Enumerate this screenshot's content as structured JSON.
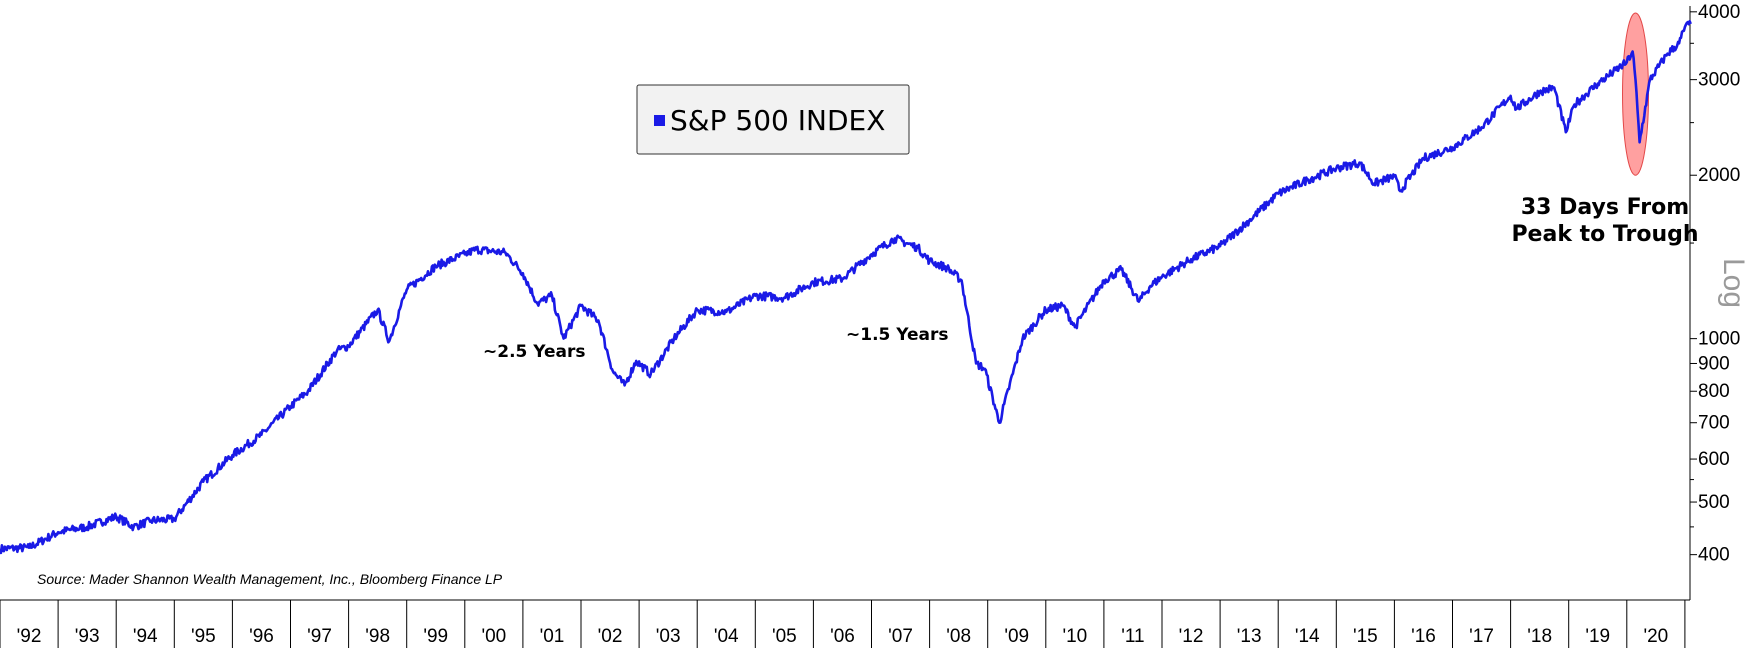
{
  "chart_data": {
    "type": "line",
    "title": "S&P 500 INDEX",
    "y_scale_label": "Log",
    "ylim": [
      330,
      4100
    ],
    "y_ticks": [
      400,
      500,
      600,
      700,
      800,
      900,
      1000,
      2000,
      3000,
      4000
    ],
    "y_tick_labels": [
      "400",
      "500",
      "600",
      "700",
      "800",
      "900",
      "1000",
      "2000",
      "3000",
      "4000"
    ],
    "x_ticks": [
      1992,
      1993,
      1994,
      1995,
      1996,
      1997,
      1998,
      1999,
      2000,
      2001,
      2002,
      2003,
      2004,
      2005,
      2006,
      2007,
      2008,
      2009,
      2010,
      2011,
      2012,
      2013,
      2014,
      2015,
      2016,
      2017,
      2018,
      2019,
      2020
    ],
    "x_tick_labels": [
      "'92",
      "'93",
      "'94",
      "'95",
      "'96",
      "'97",
      "'98",
      "'99",
      "'00",
      "'01",
      "'02",
      "'03",
      "'04",
      "'05",
      "'06",
      "'07",
      "'08",
      "'09",
      "'10",
      "'11",
      "'12",
      "'13",
      "'14",
      "'15",
      "'16",
      "'17",
      "'18",
      "'19",
      "'20"
    ],
    "xlim": [
      1992.0,
      2021.2
    ],
    "series": [
      {
        "name": "S&P 500 INDEX",
        "color": "#1a1ae6",
        "x": [
          1992.0,
          1992.5,
          1993.0,
          1993.5,
          1994.0,
          1994.3,
          1994.6,
          1995.0,
          1995.5,
          1996.0,
          1996.5,
          1997.0,
          1997.3,
          1997.8,
          1998.0,
          1998.5,
          1998.7,
          1998.9,
          1999.0,
          1999.5,
          2000.0,
          2000.2,
          2000.7,
          2001.0,
          2001.25,
          2001.5,
          2001.7,
          2002.0,
          2002.3,
          2002.55,
          2002.75,
          2002.95,
          2003.2,
          2003.6,
          2004.0,
          2004.5,
          2005.0,
          2005.5,
          2006.0,
          2006.5,
          2007.0,
          2007.4,
          2007.8,
          2008.0,
          2008.3,
          2008.55,
          2008.8,
          2008.95,
          2009.2,
          2009.6,
          2010.0,
          2010.3,
          2010.5,
          2011.0,
          2011.3,
          2011.6,
          2011.8,
          2012.0,
          2012.5,
          2013.0,
          2013.5,
          2014.0,
          2014.5,
          2015.0,
          2015.4,
          2015.65,
          2016.0,
          2016.1,
          2016.5,
          2017.0,
          2017.5,
          2018.0,
          2018.1,
          2018.5,
          2018.75,
          2018.95,
          2019.1,
          2019.5,
          2020.0,
          2020.1,
          2020.15,
          2020.22,
          2020.4,
          2020.7,
          2020.9,
          2021.0,
          2021.1
        ],
        "values": [
          410,
          412,
          440,
          450,
          470,
          450,
          462,
          465,
          545,
          610,
          665,
          750,
          800,
          950,
          970,
          1130,
          990,
          1150,
          1230,
          1360,
          1430,
          1460,
          1440,
          1320,
          1160,
          1200,
          1000,
          1150,
          1080,
          870,
          820,
          910,
          860,
          1000,
          1130,
          1120,
          1200,
          1190,
          1270,
          1290,
          1430,
          1530,
          1470,
          1390,
          1350,
          1280,
          900,
          880,
          700,
          1000,
          1130,
          1150,
          1050,
          1280,
          1340,
          1170,
          1250,
          1300,
          1400,
          1480,
          1650,
          1850,
          1960,
          2060,
          2110,
          1930,
          1990,
          1870,
          2150,
          2250,
          2450,
          2800,
          2650,
          2850,
          2900,
          2400,
          2700,
          2950,
          3230,
          3380,
          3000,
          2300,
          3000,
          3350,
          3500,
          3750,
          3800
        ]
      }
    ],
    "annotations": [
      {
        "text": "~2.5 Years",
        "x": 2001.0,
        "value": 920
      },
      {
        "text": "~1.5 Years",
        "x": 2007.0,
        "value": 1040
      },
      {
        "text": "33 Days From",
        "x": 2019.4,
        "value": 1750
      },
      {
        "text": "Peak to Trough",
        "x": 2019.4,
        "value": 1520
      }
    ],
    "highlight": {
      "x": 2020.15,
      "value_low": 2000,
      "value_high": 3980,
      "color": "#ff8080"
    },
    "source": "Source: Mader Shannon Wealth Management, Inc., Bloomberg Finance LP"
  }
}
